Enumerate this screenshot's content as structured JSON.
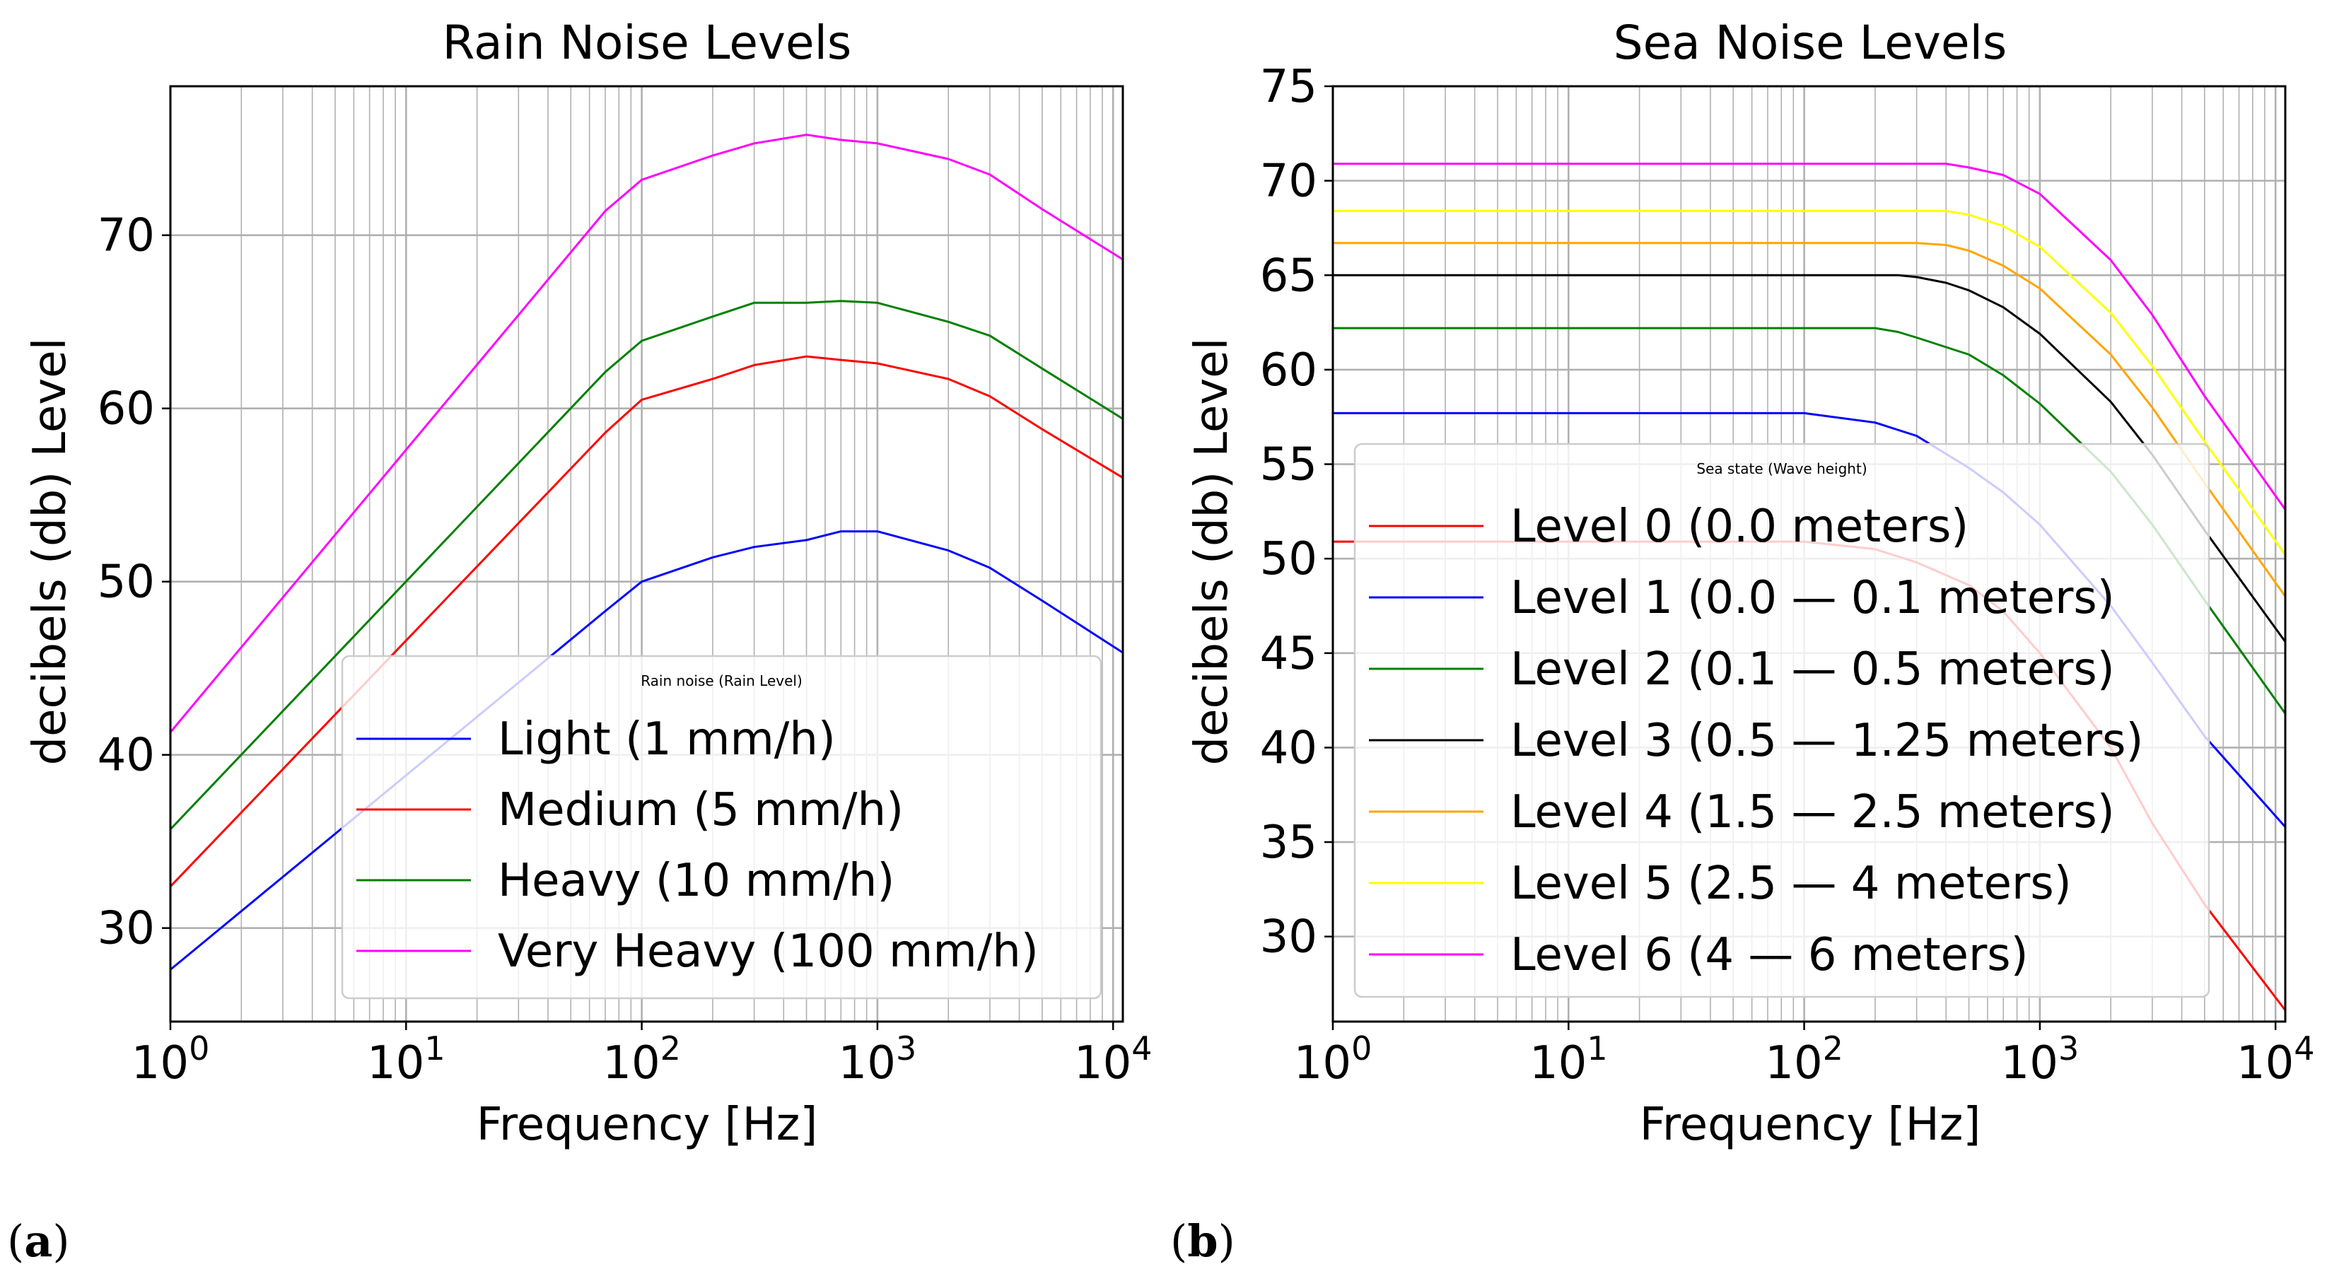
{
  "chart_data": [
    {
      "type": "line",
      "panel_label": "a",
      "title": "Rain Noise Levels",
      "xlabel": "Frequency [Hz]",
      "ylabel": "decibels (db) Level",
      "xscale": "log",
      "xlim": [
        1,
        11000
      ],
      "ylim": [
        24.6,
        78.6
      ],
      "xticks": [
        {
          "value": 1,
          "base": "10",
          "exp": "0"
        },
        {
          "value": 10,
          "base": "10",
          "exp": "1"
        },
        {
          "value": 100,
          "base": "10",
          "exp": "2"
        },
        {
          "value": 1000,
          "base": "10",
          "exp": "3"
        },
        {
          "value": 10000,
          "base": "10",
          "exp": "4"
        }
      ],
      "yticks": [
        30,
        40,
        50,
        60,
        70
      ],
      "grid": true,
      "legend": {
        "title": "Rain noise (Rain Level)",
        "placement": "lower-right"
      },
      "series": [
        {
          "name": "Light (1 mm/h)",
          "color": "#0000ff",
          "x": [
            1,
            70,
            100,
            200,
            300,
            500,
            700,
            1000,
            2000,
            3000,
            5000,
            11000
          ],
          "y": [
            27.6,
            48.3,
            50.0,
            51.4,
            52.0,
            52.4,
            52.9,
            52.9,
            51.8,
            50.8,
            48.9,
            45.9
          ]
        },
        {
          "name": "Medium (5 mm/h)",
          "color": "#ff0000",
          "x": [
            1,
            70,
            100,
            200,
            300,
            500,
            700,
            1000,
            2000,
            3000,
            5000,
            11000
          ],
          "y": [
            32.4,
            58.6,
            60.5,
            61.7,
            62.5,
            63.0,
            62.8,
            62.6,
            61.7,
            60.7,
            58.8,
            56.0
          ]
        },
        {
          "name": "Heavy (10 mm/h)",
          "color": "#008000",
          "x": [
            1,
            70,
            100,
            200,
            300,
            500,
            700,
            1000,
            2000,
            3000,
            5000,
            11000
          ],
          "y": [
            35.7,
            62.1,
            63.9,
            65.3,
            66.1,
            66.1,
            66.2,
            66.1,
            65.0,
            64.2,
            62.3,
            59.4
          ]
        },
        {
          "name": "Very Heavy (100 mm/h)",
          "color": "#ff00ff",
          "x": [
            1,
            70,
            100,
            200,
            300,
            500,
            700,
            1000,
            2000,
            3000,
            5000,
            11000
          ],
          "y": [
            41.3,
            71.4,
            73.2,
            74.6,
            75.3,
            75.8,
            75.5,
            75.3,
            74.4,
            73.5,
            71.5,
            68.6
          ]
        }
      ]
    },
    {
      "type": "line",
      "panel_label": "b",
      "title": "Sea Noise Levels",
      "xlabel": "Frequency [Hz]",
      "ylabel": "decibels (db) Level",
      "xscale": "log",
      "xlim": [
        1,
        11000
      ],
      "ylim": [
        25.5,
        75
      ],
      "xticks": [
        {
          "value": 1,
          "base": "10",
          "exp": "0"
        },
        {
          "value": 10,
          "base": "10",
          "exp": "1"
        },
        {
          "value": 100,
          "base": "10",
          "exp": "2"
        },
        {
          "value": 1000,
          "base": "10",
          "exp": "3"
        },
        {
          "value": 10000,
          "base": "10",
          "exp": "4"
        }
      ],
      "yticks": [
        30,
        35,
        40,
        45,
        50,
        55,
        60,
        65,
        70,
        75
      ],
      "grid": true,
      "legend": {
        "title": "Sea state (Wave height)",
        "placement": "lower-left"
      },
      "series": [
        {
          "name": "Level 0 (0.0 meters)",
          "color": "#ff0000",
          "x": [
            1,
            60,
            100,
            200,
            300,
            500,
            700,
            1000,
            2000,
            3000,
            5000,
            11000
          ],
          "y": [
            50.9,
            50.9,
            50.9,
            50.5,
            49.8,
            48.6,
            47.2,
            45.0,
            40.0,
            36.0,
            31.7,
            26.1
          ]
        },
        {
          "name": "Level 1 (0.0 — 0.1 meters)",
          "color": "#0000ff",
          "x": [
            1,
            60,
            100,
            200,
            300,
            500,
            700,
            1000,
            2000,
            3000,
            5000,
            11000
          ],
          "y": [
            57.7,
            57.7,
            57.7,
            57.2,
            56.5,
            54.8,
            53.5,
            51.8,
            47.5,
            44.5,
            40.6,
            35.8
          ]
        },
        {
          "name": "Level 2 (0.1 — 0.5 meters)",
          "color": "#008000",
          "x": [
            1,
            100,
            200,
            250,
            300,
            500,
            700,
            1000,
            2000,
            3000,
            5000,
            11000
          ],
          "y": [
            62.2,
            62.2,
            62.2,
            62.0,
            61.7,
            60.8,
            59.7,
            58.2,
            54.6,
            51.8,
            47.8,
            41.8
          ]
        },
        {
          "name": "Level 3 (0.5 — 1.25 meters)",
          "color": "#000000",
          "x": [
            1,
            100,
            250,
            300,
            400,
            500,
            700,
            1000,
            2000,
            3000,
            5000,
            11000
          ],
          "y": [
            65.0,
            65.0,
            65.0,
            64.9,
            64.6,
            64.2,
            63.3,
            61.9,
            58.3,
            55.5,
            51.5,
            45.6
          ]
        },
        {
          "name": "Level 4 (1.5 — 2.5 meters)",
          "color": "#ffa500",
          "x": [
            1,
            100,
            300,
            400,
            500,
            700,
            1000,
            2000,
            3000,
            5000,
            11000
          ],
          "y": [
            66.7,
            66.7,
            66.7,
            66.6,
            66.3,
            65.5,
            64.3,
            60.8,
            58.0,
            54.0,
            48.0
          ]
        },
        {
          "name": "Level 5 (2.5 — 4 meters)",
          "color": "#ffff00",
          "x": [
            1,
            100,
            400,
            500,
            700,
            1000,
            2000,
            3000,
            5000,
            11000
          ],
          "y": [
            68.4,
            68.4,
            68.4,
            68.2,
            67.6,
            66.5,
            63.0,
            60.2,
            56.2,
            50.2
          ]
        },
        {
          "name": "Level 6 (4 — 6 meters)",
          "color": "#ff00ff",
          "x": [
            1,
            100,
            400,
            500,
            700,
            1000,
            2000,
            3000,
            5000,
            11000
          ],
          "y": [
            70.9,
            70.9,
            70.9,
            70.7,
            70.3,
            69.3,
            65.8,
            62.9,
            58.6,
            52.6
          ]
        }
      ]
    }
  ]
}
